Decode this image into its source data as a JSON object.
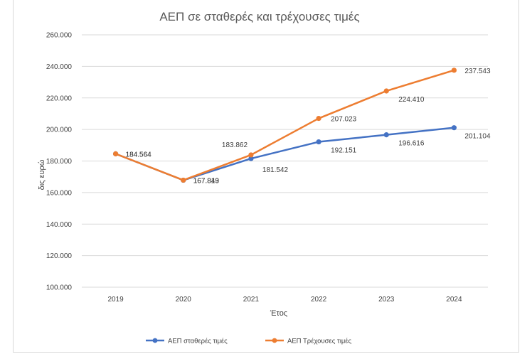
{
  "chart_data": {
    "type": "line",
    "title": "ΑΕΠ σε σταθερές και τρέχουσες τιμές",
    "xlabel": "Έτος",
    "ylabel": "δις ευρώ",
    "categories": [
      "2019",
      "2020",
      "2021",
      "2022",
      "2023",
      "2024"
    ],
    "ylim": [
      100000,
      260000
    ],
    "yticks": [
      "100.000",
      "120.000",
      "140.000",
      "160.000",
      "180.000",
      "200.000",
      "220.000",
      "240.000",
      "260.000"
    ],
    "grid": true,
    "legend": "bottom",
    "series": [
      {
        "name": "ΑΕΠ σταθερές τιμές",
        "color": "#4472c4",
        "values": [
          184.564,
          167.813,
          181.542,
          192.151,
          196.616,
          201.104
        ],
        "labels": [
          "184.564",
          "167.813",
          "181.542",
          "192.151",
          "196.616",
          "201.104"
        ]
      },
      {
        "name": "ΑΕΠ Τρέχουσες τιμές",
        "color": "#ed7d31",
        "values": [
          184.564,
          167.849,
          183.862,
          207.023,
          224.41,
          237.543
        ],
        "labels": [
          "184.564",
          "167.849",
          "183.862",
          "207.023",
          "224.410",
          "237.543"
        ]
      }
    ]
  }
}
